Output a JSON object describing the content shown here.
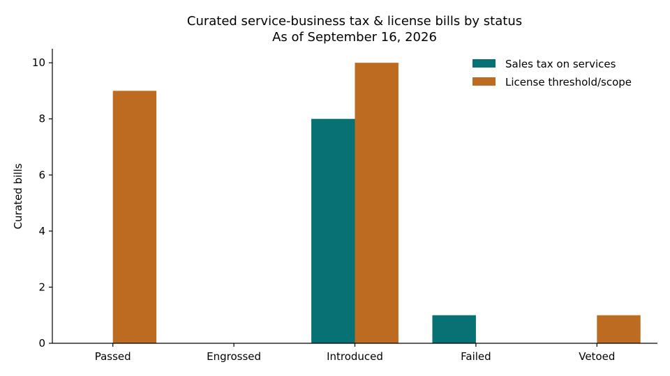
{
  "chart_data": {
    "type": "bar",
    "title": "Curated service-business tax & license bills by status",
    "subtitle": "As of September 16, 2026",
    "xlabel": "",
    "ylabel": "Curated bills",
    "categories": [
      "Passed",
      "Engrossed",
      "Introduced",
      "Failed",
      "Vetoed"
    ],
    "series": [
      {
        "name": "Sales tax on services",
        "color": "#087173",
        "values": [
          0,
          0,
          8,
          1,
          0
        ]
      },
      {
        "name": "License threshold/scope",
        "color": "#bc6b20",
        "values": [
          9,
          0,
          10,
          0,
          1
        ]
      }
    ],
    "ylim": [
      0,
      10.5
    ],
    "yticks": [
      0,
      2,
      4,
      6,
      8,
      10
    ],
    "grid": false,
    "legend": "top-right"
  }
}
